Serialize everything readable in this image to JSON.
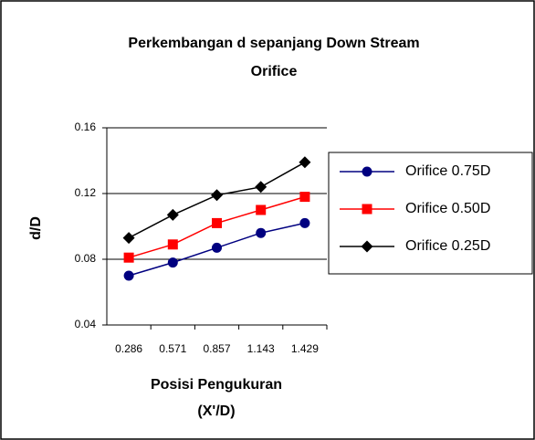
{
  "chart_data": {
    "type": "line",
    "title": [
      "Perkembangan d sepanjang Down Stream",
      "Orifice"
    ],
    "x_label": [
      "Posisi Pengukuran",
      "(X'/D)"
    ],
    "y_label": "d/D",
    "categories": [
      "0.286",
      "0.571",
      "0.857",
      "1.143",
      "1.429"
    ],
    "series": [
      {
        "name": "Orifice 0.75D",
        "color": "#000080",
        "marker": "circle",
        "values": [
          0.07,
          0.078,
          0.087,
          0.096,
          0.102
        ]
      },
      {
        "name": "Orifice 0.50D",
        "color": "#ff0000",
        "marker": "square",
        "values": [
          0.081,
          0.089,
          0.102,
          0.11,
          0.118
        ]
      },
      {
        "name": "Orifice 0.25D",
        "color": "#000000",
        "marker": "diamond",
        "values": [
          0.093,
          0.107,
          0.119,
          0.124,
          0.139
        ]
      }
    ],
    "ylim": [
      0.04,
      0.16
    ],
    "yticks": [
      0.04,
      0.08,
      0.12,
      0.16
    ],
    "grid": true,
    "legend": "right"
  }
}
